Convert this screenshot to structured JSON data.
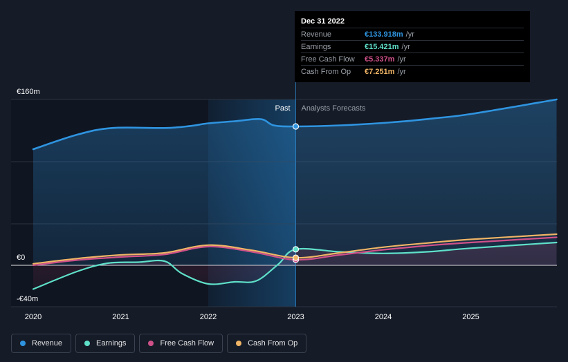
{
  "colors": {
    "background": "#151b27",
    "revenue": "#2f94e0",
    "earnings": "#5fe0c9",
    "free_cash_flow": "#d0518a",
    "cash_from_op": "#f0b466"
  },
  "tooltip": {
    "date": "Dec 31 2022",
    "rows": [
      {
        "label": "Revenue",
        "value": "€133.918m",
        "unit": "/yr",
        "color": "#2f94e0"
      },
      {
        "label": "Earnings",
        "value": "€15.421m",
        "unit": "/yr",
        "color": "#5fe0c9"
      },
      {
        "label": "Free Cash Flow",
        "value": "€5.337m",
        "unit": "/yr",
        "color": "#d0518a"
      },
      {
        "label": "Cash From Op",
        "value": "€7.251m",
        "unit": "/yr",
        "color": "#f0b466"
      }
    ]
  },
  "legend": [
    {
      "label": "Revenue",
      "icon": "revenue-dot-icon",
      "color": "#2f94e0"
    },
    {
      "label": "Earnings",
      "icon": "earnings-dot-icon",
      "color": "#5fe0c9"
    },
    {
      "label": "Free Cash Flow",
      "icon": "free-cash-flow-dot-icon",
      "color": "#d0518a"
    },
    {
      "label": "Cash From Op",
      "icon": "cash-from-op-dot-icon",
      "color": "#f0b466"
    }
  ],
  "chart_data": {
    "type": "area",
    "past_label": "Past",
    "forecast_label": "Analysts Forecasts",
    "divider_x": 2023.0,
    "x_ticks": [
      {
        "value": 2020,
        "label": "2020"
      },
      {
        "value": 2021,
        "label": "2021"
      },
      {
        "value": 2022,
        "label": "2022"
      },
      {
        "value": 2023,
        "label": "2023"
      },
      {
        "value": 2024,
        "label": "2024"
      },
      {
        "value": 2025,
        "label": "2025"
      }
    ],
    "y_ticks": [
      {
        "value": 160,
        "label": "€160m"
      },
      {
        "value": 0,
        "label": "€0"
      },
      {
        "value": -40,
        "label": "-€40m"
      }
    ],
    "xlim": [
      2019.78,
      2025.98
    ],
    "ylim": [
      -40,
      160
    ],
    "gridlines": [
      160,
      100,
      40,
      0
    ],
    "series": [
      {
        "name": "Revenue",
        "color": "#2f94e0",
        "fill": true,
        "points": [
          [
            2020.0,
            112
          ],
          [
            2020.5,
            126
          ],
          [
            2020.9,
            132.5
          ],
          [
            2021.5,
            132.5
          ],
          [
            2021.8,
            134.5
          ],
          [
            2022.0,
            137
          ],
          [
            2022.3,
            139
          ],
          [
            2022.6,
            141
          ],
          [
            2022.75,
            135
          ],
          [
            2023.0,
            134
          ],
          [
            2023.5,
            135
          ],
          [
            2024.1,
            138
          ],
          [
            2024.6,
            142
          ],
          [
            2025.0,
            146
          ],
          [
            2025.98,
            160
          ]
        ]
      },
      {
        "name": "Earnings",
        "color": "#5fe0c9",
        "fill": false,
        "points": [
          [
            2020.0,
            -23
          ],
          [
            2020.5,
            -6
          ],
          [
            2020.85,
            2
          ],
          [
            2021.2,
            3
          ],
          [
            2021.5,
            4
          ],
          [
            2021.7,
            -8
          ],
          [
            2022.0,
            -18
          ],
          [
            2022.3,
            -16
          ],
          [
            2022.55,
            -15
          ],
          [
            2022.8,
            1
          ],
          [
            2023.0,
            15.4
          ],
          [
            2023.5,
            13
          ],
          [
            2024.0,
            11.5
          ],
          [
            2024.5,
            13
          ],
          [
            2025.0,
            16.5
          ],
          [
            2025.98,
            22
          ]
        ]
      },
      {
        "name": "Free Cash Flow",
        "color": "#d0518a",
        "fill": false,
        "points": [
          [
            2020.0,
            0
          ],
          [
            2020.5,
            5
          ],
          [
            2021.0,
            8
          ],
          [
            2021.5,
            10.5
          ],
          [
            2022.0,
            18
          ],
          [
            2022.5,
            13
          ],
          [
            2023.0,
            5.3
          ],
          [
            2023.5,
            10
          ],
          [
            2024.0,
            15
          ],
          [
            2024.5,
            19
          ],
          [
            2025.0,
            22
          ],
          [
            2025.98,
            27
          ]
        ]
      },
      {
        "name": "Cash From Op",
        "color": "#f0b466",
        "fill": false,
        "points": [
          [
            2020.0,
            1.5
          ],
          [
            2020.5,
            6.5
          ],
          [
            2021.0,
            10
          ],
          [
            2021.5,
            12
          ],
          [
            2022.0,
            19.5
          ],
          [
            2022.5,
            14.5
          ],
          [
            2023.0,
            7.3
          ],
          [
            2023.5,
            12
          ],
          [
            2024.0,
            17.5
          ],
          [
            2024.5,
            21.5
          ],
          [
            2025.0,
            25
          ],
          [
            2025.98,
            30
          ]
        ]
      }
    ]
  }
}
